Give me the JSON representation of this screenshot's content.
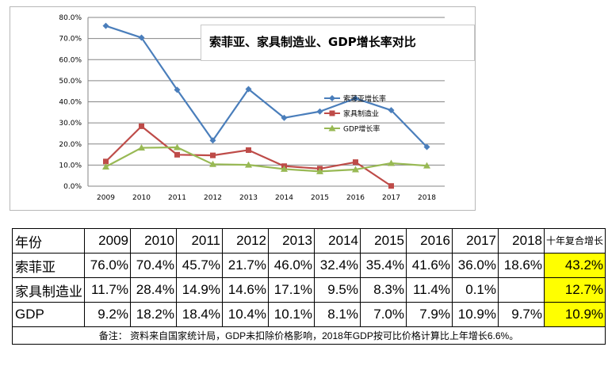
{
  "chart_data": {
    "type": "line",
    "title": "索菲亚、家具制造业、GDP增长率对比",
    "categories": [
      "2009",
      "2010",
      "2011",
      "2012",
      "2013",
      "2014",
      "2015",
      "2016",
      "2017",
      "2018"
    ],
    "y_ticks": [
      "0.0%",
      "10.0%",
      "20.0%",
      "30.0%",
      "40.0%",
      "50.0%",
      "60.0%",
      "70.0%",
      "80.0%"
    ],
    "ylim": [
      0,
      80
    ],
    "grid": true,
    "legend_position": "right",
    "series": [
      {
        "name": "索菲亚增长率",
        "color": "#4a7ebb",
        "marker": "diamond",
        "values": [
          76.0,
          70.4,
          45.7,
          21.7,
          46.0,
          32.4,
          35.4,
          41.6,
          36.0,
          18.6
        ]
      },
      {
        "name": "家具制造业",
        "color": "#be4b48",
        "marker": "square",
        "values": [
          11.7,
          28.4,
          14.9,
          14.6,
          17.1,
          9.5,
          8.3,
          11.4,
          0.1,
          null
        ]
      },
      {
        "name": "GDP增长率",
        "color": "#98b954",
        "marker": "triangle",
        "values": [
          9.2,
          18.2,
          18.4,
          10.4,
          10.1,
          8.1,
          7.0,
          7.9,
          10.9,
          9.7
        ]
      }
    ]
  },
  "table": {
    "header_label": "年份",
    "years": [
      "2009",
      "2010",
      "2011",
      "2012",
      "2013",
      "2014",
      "2015",
      "2016",
      "2017",
      "2018"
    ],
    "cagr_header": "十年复合增长",
    "rows": [
      {
        "label": "索菲亚",
        "values": [
          "76.0%",
          "70.4%",
          "45.7%",
          "21.7%",
          "46.0%",
          "32.4%",
          "35.4%",
          "41.6%",
          "36.0%",
          "18.6%"
        ],
        "cagr": "43.2%"
      },
      {
        "label": "家具制造业",
        "values": [
          "11.7%",
          "28.4%",
          "14.9%",
          "14.6%",
          "17.1%",
          "9.5%",
          "8.3%",
          "11.4%",
          "0.1%",
          ""
        ],
        "cagr": "12.7%"
      },
      {
        "label": "GDP",
        "values": [
          "9.2%",
          "18.2%",
          "18.4%",
          "10.4%",
          "10.1%",
          "8.1%",
          "7.0%",
          "7.9%",
          "10.9%",
          "9.7%"
        ],
        "cagr": "10.9%"
      }
    ],
    "note": "备注： 资料来自国家统计局，GDP未扣除价格影响，2018年GDP按可比价格计算比上年增长6.6%。"
  }
}
